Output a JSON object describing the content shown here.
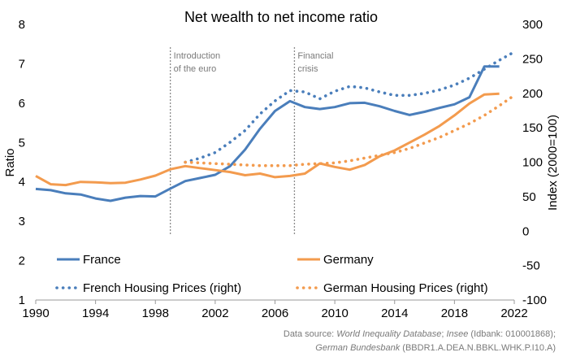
{
  "chart_data": {
    "type": "line",
    "title": "Net wealth to net income ratio",
    "ylabel": "Ratio",
    "y2label": "Index (2000=100)",
    "xlabel": "",
    "xlim": [
      1990,
      2022
    ],
    "ylim": [
      1,
      8
    ],
    "y2lim": [
      -100,
      300
    ],
    "x_ticks": [
      "1990",
      "1994",
      "1998",
      "2002",
      "2006",
      "2010",
      "2014",
      "2018",
      "2022"
    ],
    "y_ticks": [
      "1",
      "2",
      "3",
      "4",
      "5",
      "6",
      "7",
      "8"
    ],
    "y2_ticks": [
      "-100",
      "-50",
      "0",
      "50",
      "100",
      "150",
      "200",
      "250",
      "300"
    ],
    "grid": false,
    "legend_position": "bottom, inside plot area",
    "colors": {
      "france": "#4a7ebb",
      "germany": "#f39b4e",
      "annotation_line": "#8c8c8c"
    },
    "series": [
      {
        "name": "France",
        "axis": "left",
        "style": "solid",
        "color": "#4a7ebb",
        "x": [
          1990,
          1991,
          1992,
          1993,
          1994,
          1995,
          1996,
          1997,
          1998,
          1999,
          2000,
          2001,
          2002,
          2003,
          2004,
          2005,
          2006,
          2007,
          2008,
          2009,
          2010,
          2011,
          2012,
          2013,
          2014,
          2015,
          2016,
          2017,
          2018,
          2019,
          2020,
          2021
        ],
        "values": [
          3.82,
          3.79,
          3.71,
          3.68,
          3.58,
          3.52,
          3.6,
          3.64,
          3.63,
          3.83,
          4.02,
          4.1,
          4.18,
          4.4,
          4.82,
          5.35,
          5.8,
          6.05,
          5.9,
          5.85,
          5.9,
          6.0,
          6.01,
          5.92,
          5.8,
          5.7,
          5.78,
          5.88,
          5.97,
          6.15,
          6.93,
          6.93
        ]
      },
      {
        "name": "Germany",
        "axis": "left",
        "style": "solid",
        "color": "#f39b4e",
        "x": [
          1990,
          1991,
          1992,
          1993,
          1994,
          1995,
          1996,
          1997,
          1998,
          1999,
          2000,
          2001,
          2002,
          2003,
          2004,
          2005,
          2006,
          2007,
          2008,
          2009,
          2010,
          2011,
          2012,
          2013,
          2014,
          2015,
          2016,
          2017,
          2018,
          2019,
          2020,
          2021
        ],
        "values": [
          4.15,
          3.94,
          3.92,
          4.0,
          3.99,
          3.97,
          3.98,
          4.06,
          4.16,
          4.32,
          4.4,
          4.35,
          4.3,
          4.25,
          4.17,
          4.21,
          4.12,
          4.15,
          4.21,
          4.47,
          4.38,
          4.31,
          4.43,
          4.65,
          4.8,
          5.0,
          5.2,
          5.42,
          5.69,
          5.99,
          6.22,
          6.24
        ]
      },
      {
        "name": "French Housing Prices (right)",
        "axis": "right",
        "style": "dotted",
        "color": "#4a7ebb",
        "x": [
          2000,
          2001,
          2002,
          2003,
          2004,
          2005,
          2006,
          2007,
          2008,
          2009,
          2010,
          2011,
          2012,
          2013,
          2014,
          2015,
          2016,
          2017,
          2018,
          2019,
          2020,
          2021,
          2022
        ],
        "values": [
          100,
          106,
          114,
          129,
          146,
          170,
          189,
          204,
          202,
          192,
          203,
          210,
          208,
          202,
          197,
          197,
          200,
          205,
          212,
          222,
          235,
          248,
          260
        ]
      },
      {
        "name": "German Housing Prices (right)",
        "axis": "right",
        "style": "dotted",
        "color": "#f39b4e",
        "x": [
          2000,
          2001,
          2002,
          2003,
          2004,
          2005,
          2006,
          2007,
          2008,
          2009,
          2010,
          2011,
          2012,
          2013,
          2014,
          2015,
          2016,
          2017,
          2018,
          2019,
          2020,
          2021,
          2022
        ],
        "values": [
          100,
          99,
          98,
          97,
          96,
          95,
          95,
          95,
          97,
          98,
          99,
          102,
          106,
          110,
          114,
          120,
          128,
          136,
          146,
          156,
          168,
          182,
          197
        ]
      }
    ],
    "annotations": [
      {
        "x": 1999,
        "lines": [
          "Introduction",
          "of the euro"
        ]
      },
      {
        "x": 2007.3,
        "lines": [
          "Financial",
          "crisis"
        ]
      }
    ]
  },
  "source": {
    "prefix": "Data source: ",
    "wid": "World Inequality Database",
    "sep1": "; ",
    "insee": "Insee",
    "insee_code": " (Idbank: 010001868);",
    "bundesbank": "German Bundesbank",
    "bundesbank_code": " (BBDR1.A.DEA.N.BBKL.WHK.P.I10.A)"
  }
}
